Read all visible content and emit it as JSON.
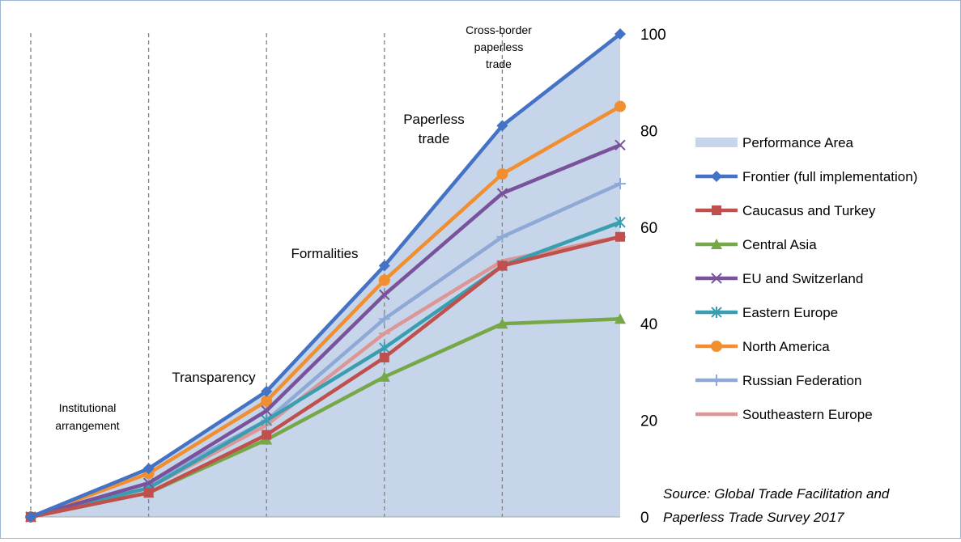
{
  "chart_data": {
    "type": "line",
    "x": [
      0,
      1,
      2,
      3,
      4,
      5
    ],
    "ylim": [
      0,
      100
    ],
    "y_ticks": [
      "0",
      "20",
      "40",
      "60",
      "80",
      "100"
    ],
    "stage_labels": [
      {
        "lines": [
          "Institutional",
          "arrangement"
        ],
        "small": true
      },
      {
        "lines": [
          "Transparency"
        ],
        "small": false
      },
      {
        "lines": [
          "Formalities"
        ],
        "small": false
      },
      {
        "lines": [
          "Paperless",
          "trade"
        ],
        "small": false
      },
      {
        "lines": [
          "Cross-border",
          "paperless",
          "trade"
        ],
        "small": true
      }
    ],
    "area": {
      "name": "Performance Area",
      "color": "#c6d5e9",
      "values": [
        0,
        10,
        26,
        52,
        81,
        100
      ]
    },
    "series": [
      {
        "name": "Frontier (full implementation)",
        "color": "#4472c4",
        "marker": "diamond",
        "values": [
          0,
          10,
          26,
          52,
          81,
          100
        ]
      },
      {
        "name": "Caucasus and Turkey",
        "color": "#c0504d",
        "marker": "square",
        "values": [
          0,
          5,
          17,
          33,
          52,
          58
        ]
      },
      {
        "name": "Central Asia",
        "color": "#77a848",
        "marker": "triangle",
        "values": [
          0,
          5,
          16,
          29,
          40,
          41
        ]
      },
      {
        "name": "EU and Switzerland",
        "color": "#7a529c",
        "marker": "x",
        "values": [
          0,
          7,
          22,
          46,
          67,
          77
        ]
      },
      {
        "name": "Eastern Europe",
        "color": "#3a9eb1",
        "marker": "star",
        "values": [
          0,
          6,
          20,
          35,
          52,
          61
        ]
      },
      {
        "name": "North America",
        "color": "#f18f30",
        "marker": "circle",
        "values": [
          0,
          9,
          24,
          49,
          71,
          85
        ]
      },
      {
        "name": "Russian Federation",
        "color": "#8fa9d6",
        "marker": "plus",
        "values": [
          0,
          7,
          20,
          41,
          58,
          69
        ]
      },
      {
        "name": "Southeastern Europe",
        "color": "#dd9695",
        "marker": "dash",
        "values": [
          0,
          6,
          19,
          38,
          53,
          58
        ]
      }
    ],
    "source": [
      "Source: Global Trade Facilitation and",
      "Paperless Trade Survey 2017"
    ]
  }
}
